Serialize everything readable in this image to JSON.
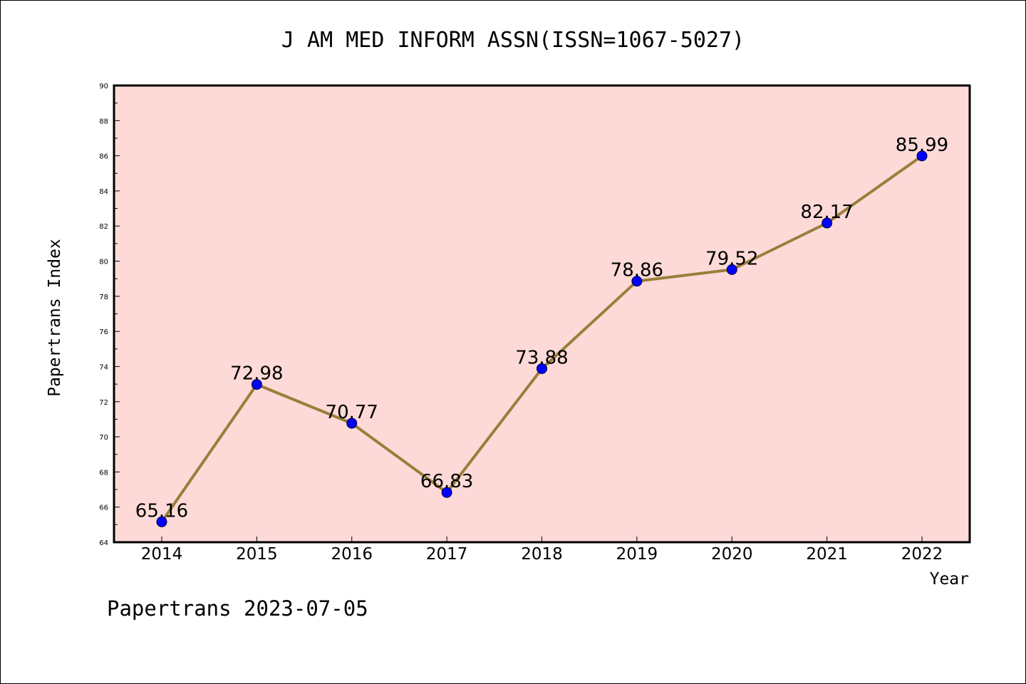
{
  "chart_data": {
    "type": "line",
    "title": "J AM MED INFORM ASSN(ISSN=1067-5027)",
    "xlabel": "Year",
    "ylabel": "Papertrans Index",
    "footer": "Papertrans 2023-07-05",
    "categories": [
      "2014",
      "2015",
      "2016",
      "2017",
      "2018",
      "2019",
      "2020",
      "2021",
      "2022"
    ],
    "values": [
      65.16,
      72.98,
      70.77,
      66.83,
      73.88,
      78.86,
      79.52,
      82.17,
      85.99
    ],
    "data_labels": [
      "65.16",
      "72.98",
      "70.77",
      "66.83",
      "73.88",
      "78.86",
      "79.52",
      "82.17",
      "85.99"
    ],
    "ylim": [
      64,
      90
    ],
    "yticks": [
      "64",
      "66",
      "68",
      "70",
      "72",
      "74",
      "76",
      "78",
      "80",
      "82",
      "84",
      "86",
      "88",
      "90"
    ],
    "grid": false,
    "legend": "none",
    "colors": {
      "plot_background": "#fddad8",
      "line": "#9a7e3a",
      "marker": "#0000ff"
    }
  }
}
